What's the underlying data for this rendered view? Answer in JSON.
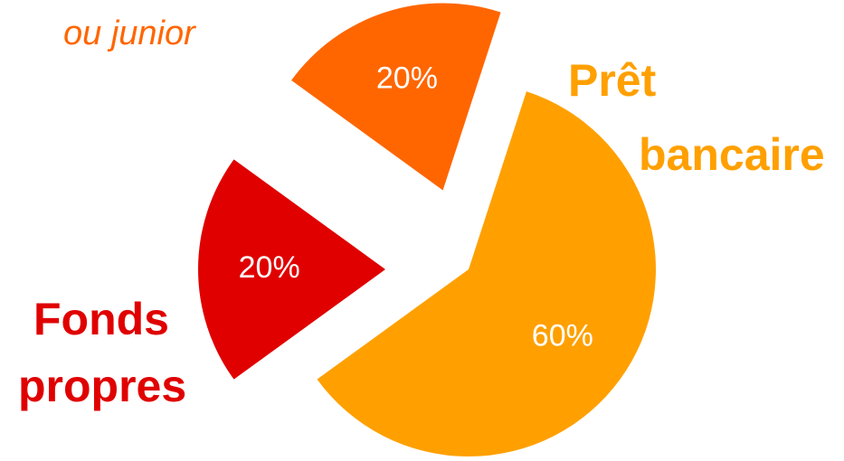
{
  "chart_data": {
    "type": "pie",
    "exploded": true,
    "slices": [
      {
        "label_lines": [
          "Prêt",
          "bancaire"
        ],
        "value": 60,
        "value_label": "60%",
        "color": "#ffa000"
      },
      {
        "label_lines": [
          "Fonds",
          "propres"
        ],
        "value": 20,
        "value_label": "20%",
        "color": "#e00000"
      },
      {
        "label_lines": [
          "ou junior"
        ],
        "value": 20,
        "value_label": "20%",
        "color": "#ff6600"
      }
    ]
  }
}
